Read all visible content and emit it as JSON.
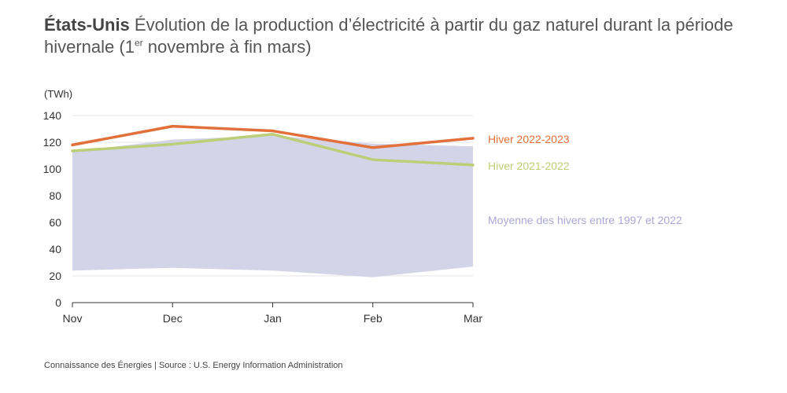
{
  "title": {
    "country": "États-Unis",
    "text_before": "Évolution de la production d’électricité à partir du gaz naturel durant la période hivernale (1",
    "superscript": "er",
    "text_after": " novembre à fin mars)"
  },
  "footer": "Connaissance des Énergies | Source : U.S. Energy Information Administration",
  "chart_data": {
    "type": "line",
    "unit_label": "(TWh)",
    "categories": [
      "Nov",
      "Dec",
      "Jan",
      "Feb",
      "Mar"
    ],
    "ylim": [
      0,
      140
    ],
    "yticks": [
      0,
      20,
      40,
      60,
      80,
      100,
      120,
      140
    ],
    "grid": true,
    "legend_placement": "right",
    "band": {
      "name": "Moyenne des hivers entre 1997 et 2022",
      "color": "#d4d4e8",
      "label_color": "#aaa8d6",
      "upper": [
        113,
        122,
        125,
        119,
        117
      ],
      "lower": [
        24,
        26,
        24,
        19,
        27
      ]
    },
    "series": [
      {
        "name": "Hiver 2022-2023",
        "color": "#e2703a",
        "values": [
          118,
          132,
          128.5,
          116,
          123
        ]
      },
      {
        "name": "Hiver 2021-2022",
        "color": "#bccf78",
        "values": [
          113.5,
          118.5,
          126,
          107,
          103
        ]
      }
    ]
  }
}
